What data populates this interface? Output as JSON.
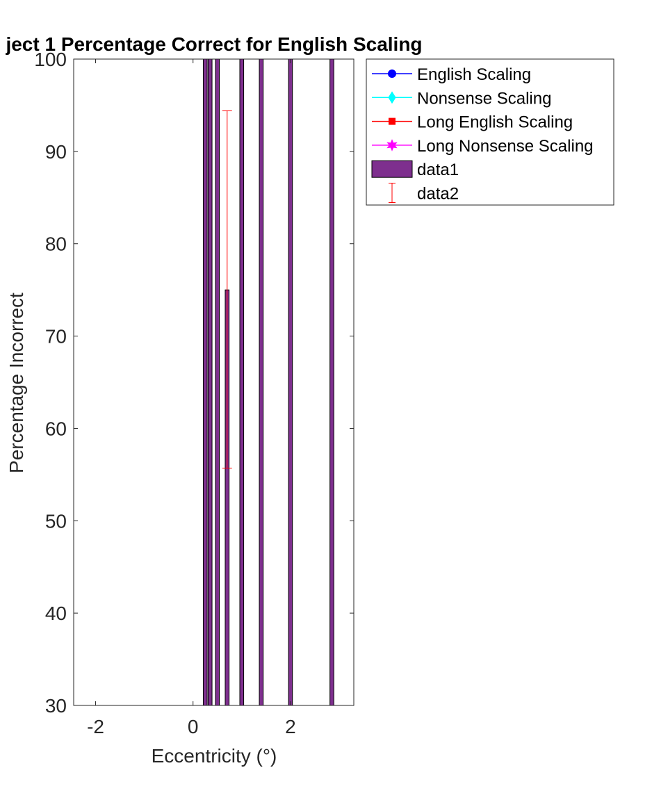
{
  "chart_data": {
    "type": "bar",
    "title": "ject 1 Percentage Correct for English Scaling",
    "xlabel": "Eccentricity (°)",
    "ylabel": "Percentage Incorrect",
    "xlim": [
      -2.45,
      3.3
    ],
    "ylim": [
      30,
      100
    ],
    "xticks": [
      -2,
      0,
      2
    ],
    "xtick_labels": [
      "-2",
      "0",
      "2"
    ],
    "yticks": [
      30,
      40,
      50,
      60,
      70,
      80,
      90,
      100
    ],
    "ytick_labels": [
      "30",
      "40",
      "50",
      "60",
      "70",
      "80",
      "90",
      "100"
    ],
    "bar_width": 0.08,
    "bar_color": "#7E2F8E",
    "errorbar_color": "#FF0000",
    "grid": false,
    "legend_position": "outside-top-right",
    "bars": {
      "name": "data1",
      "x": [
        0.25,
        0.35,
        0.5,
        0.7,
        1.0,
        1.4,
        2.0,
        2.85
      ],
      "values": [
        100,
        100,
        100,
        75,
        100,
        100,
        100,
        100
      ]
    },
    "errorbars": {
      "name": "data2",
      "x": [
        0.7
      ],
      "center": [
        75
      ],
      "lower": [
        55.7
      ],
      "upper": [
        94.4
      ]
    },
    "legend": [
      {
        "label": "English Scaling",
        "color": "#0000FF",
        "marker": "circle"
      },
      {
        "label": "Nonsense Scaling",
        "color": "#00FFFF",
        "marker": "diamond"
      },
      {
        "label": "Long English Scaling",
        "color": "#FF0000",
        "marker": "square"
      },
      {
        "label": "Long Nonsense Scaling",
        "color": "#FF00FF",
        "marker": "hexagram"
      },
      {
        "label": "data1",
        "color": "#7E2F8E",
        "marker": "bar"
      },
      {
        "label": "data2",
        "color": "#FF0000",
        "marker": "errorbar"
      }
    ]
  }
}
